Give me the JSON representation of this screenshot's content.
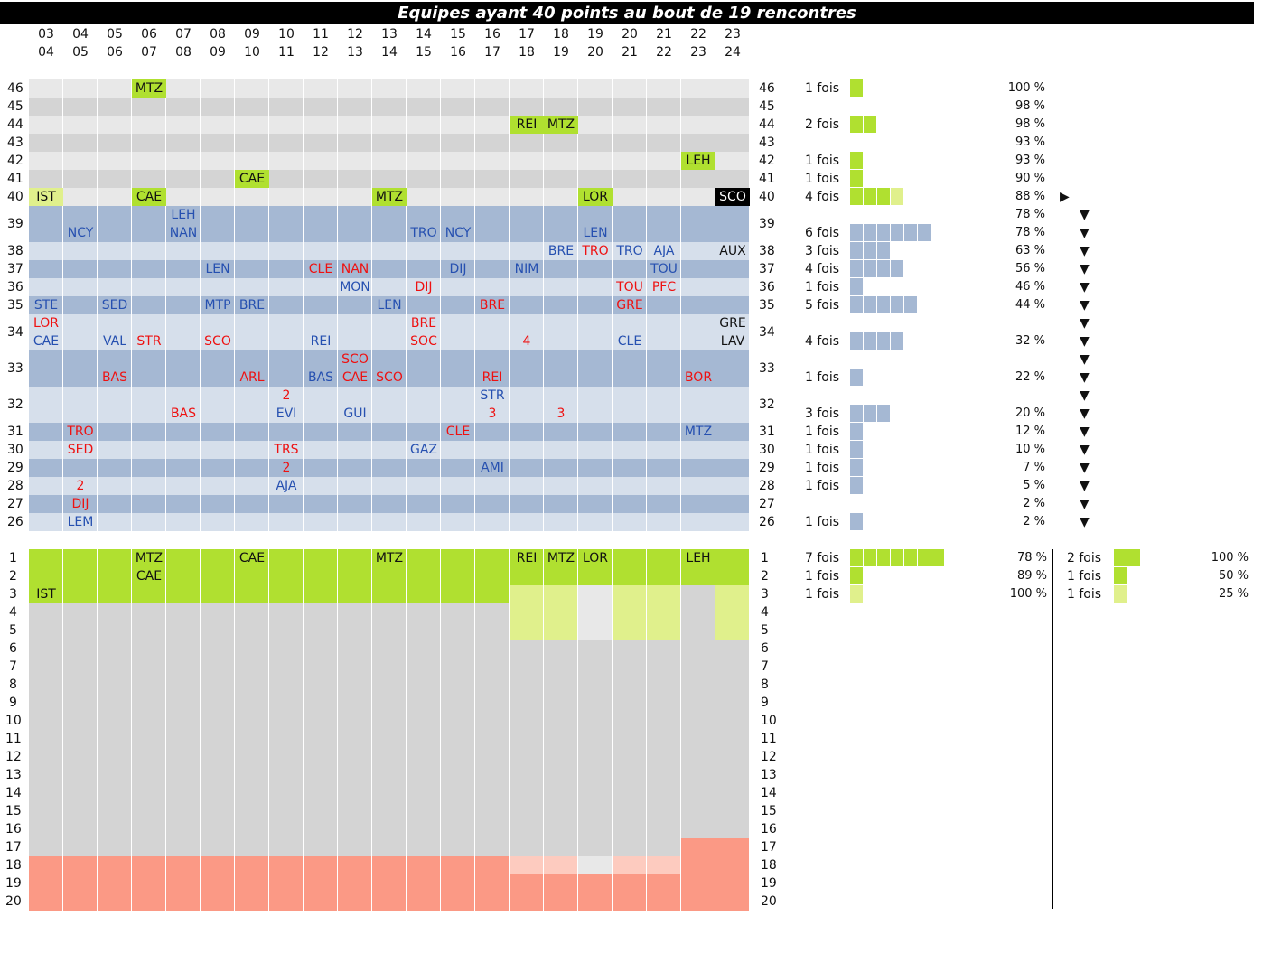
{
  "title": "Equipes ayant 40 points au bout de 19 rencontres",
  "seasons_top": [
    "03",
    "04",
    "05",
    "06",
    "07",
    "08",
    "09",
    "10",
    "11",
    "12",
    "13",
    "14",
    "15",
    "16",
    "17",
    "18",
    "19",
    "20",
    "21",
    "22",
    "23"
  ],
  "seasons_bottom": [
    "04",
    "05",
    "06",
    "07",
    "08",
    "09",
    "10",
    "11",
    "12",
    "13",
    "14",
    "15",
    "16",
    "17",
    "18",
    "19",
    "20",
    "21",
    "22",
    "23",
    "24"
  ],
  "colors": {
    "green": "#b0e030",
    "lime": "#e0f08c",
    "light_grey": "#e8e8e8",
    "mid_grey": "#d4d4d4",
    "blue_dark": "#a5b8d3",
    "blue_light": "#d6dfeb",
    "salmon": "#fb9985",
    "salmon_light": "#fdcbbf",
    "team_blue": "#2650b0",
    "team_red": "#ee1111"
  },
  "chart_data": {
    "type": "table",
    "title": "Equipes ayant 40 points au bout de 19 rencontres",
    "points_rows": [
      "46",
      "45",
      "44",
      "43",
      "42",
      "41",
      "40",
      "39",
      "38",
      "37",
      "36",
      "35",
      "34",
      "33",
      "32",
      "31",
      "30",
      "29",
      "28",
      "27",
      "26"
    ],
    "points_entries": [
      {
        "pts": "46",
        "col": 3,
        "line": 0,
        "text": "MTZ",
        "style": "bg-green"
      },
      {
        "pts": "44",
        "col": 14,
        "line": 0,
        "text": "REI",
        "style": "bg-green"
      },
      {
        "pts": "44",
        "col": 15,
        "line": 0,
        "text": "MTZ",
        "style": "bg-green"
      },
      {
        "pts": "42",
        "col": 19,
        "line": 0,
        "text": "LEH",
        "style": "bg-green"
      },
      {
        "pts": "41",
        "col": 6,
        "line": 0,
        "text": "CAE",
        "style": "bg-green"
      },
      {
        "pts": "40",
        "col": 0,
        "line": 0,
        "text": "IST",
        "style": "bg-lime"
      },
      {
        "pts": "40",
        "col": 3,
        "line": 0,
        "text": "CAE",
        "style": "bg-green"
      },
      {
        "pts": "40",
        "col": 10,
        "line": 0,
        "text": "MTZ",
        "style": "bg-green"
      },
      {
        "pts": "40",
        "col": 16,
        "line": 0,
        "text": "LOR",
        "style": "bg-green"
      },
      {
        "pts": "40",
        "col": 20,
        "line": 0,
        "text": "SCO",
        "style": "bg-black"
      },
      {
        "pts": "39",
        "col": 1,
        "line": 1,
        "text": "NCY",
        "style": "blue"
      },
      {
        "pts": "39",
        "col": 4,
        "line": 0,
        "text": "LEH",
        "style": "blue"
      },
      {
        "pts": "39",
        "col": 4,
        "line": 1,
        "text": "NAN",
        "style": "blue"
      },
      {
        "pts": "39",
        "col": 11,
        "line": 1,
        "text": "TRO",
        "style": "blue"
      },
      {
        "pts": "39",
        "col": 12,
        "line": 1,
        "text": "NCY",
        "style": "blue"
      },
      {
        "pts": "39",
        "col": 16,
        "line": 1,
        "text": "LEN",
        "style": "blue"
      },
      {
        "pts": "38",
        "col": 15,
        "line": 0,
        "text": "BRE",
        "style": "blue"
      },
      {
        "pts": "38",
        "col": 16,
        "line": 0,
        "text": "TRO",
        "style": "red"
      },
      {
        "pts": "38",
        "col": 17,
        "line": 0,
        "text": "TRO",
        "style": "blue"
      },
      {
        "pts": "38",
        "col": 18,
        "line": 0,
        "text": "AJA",
        "style": "blue"
      },
      {
        "pts": "38",
        "col": 20,
        "line": 0,
        "text": "AUX",
        "style": "black"
      },
      {
        "pts": "37",
        "col": 5,
        "line": 0,
        "text": "LEN",
        "style": "blue"
      },
      {
        "pts": "37",
        "col": 8,
        "line": 0,
        "text": "CLE",
        "style": "red"
      },
      {
        "pts": "37",
        "col": 9,
        "line": 0,
        "text": "NAN",
        "style": "red"
      },
      {
        "pts": "37",
        "col": 12,
        "line": 0,
        "text": "DIJ",
        "style": "blue"
      },
      {
        "pts": "37",
        "col": 14,
        "line": 0,
        "text": "NIM",
        "style": "blue"
      },
      {
        "pts": "37",
        "col": 18,
        "line": 0,
        "text": "TOU",
        "style": "blue"
      },
      {
        "pts": "36",
        "col": 9,
        "line": 0,
        "text": "MON",
        "style": "blue"
      },
      {
        "pts": "36",
        "col": 11,
        "line": 0,
        "text": "DIJ",
        "style": "red"
      },
      {
        "pts": "36",
        "col": 17,
        "line": 0,
        "text": "TOU",
        "style": "red"
      },
      {
        "pts": "36",
        "col": 18,
        "line": 0,
        "text": "PFC",
        "style": "red"
      },
      {
        "pts": "35",
        "col": 0,
        "line": 0,
        "text": "STE",
        "style": "blue"
      },
      {
        "pts": "35",
        "col": 2,
        "line": 0,
        "text": "SED",
        "style": "blue"
      },
      {
        "pts": "35",
        "col": 5,
        "line": 0,
        "text": "MTP",
        "style": "blue"
      },
      {
        "pts": "35",
        "col": 6,
        "line": 0,
        "text": "BRE",
        "style": "blue"
      },
      {
        "pts": "35",
        "col": 10,
        "line": 0,
        "text": "LEN",
        "style": "blue"
      },
      {
        "pts": "35",
        "col": 13,
        "line": 0,
        "text": "BRE",
        "style": "red"
      },
      {
        "pts": "35",
        "col": 17,
        "line": 0,
        "text": "GRE",
        "style": "red"
      },
      {
        "pts": "34",
        "col": 0,
        "line": 0,
        "text": "LOR",
        "style": "red"
      },
      {
        "pts": "34",
        "col": 0,
        "line": 1,
        "text": "CAE",
        "style": "blue"
      },
      {
        "pts": "34",
        "col": 2,
        "line": 1,
        "text": "VAL",
        "style": "blue"
      },
      {
        "pts": "34",
        "col": 3,
        "line": 1,
        "text": "STR",
        "style": "red"
      },
      {
        "pts": "34",
        "col": 5,
        "line": 1,
        "text": "SCO",
        "style": "red"
      },
      {
        "pts": "34",
        "col": 8,
        "line": 1,
        "text": "REI",
        "style": "blue"
      },
      {
        "pts": "34",
        "col": 11,
        "line": 0,
        "text": "BRE",
        "style": "red"
      },
      {
        "pts": "34",
        "col": 11,
        "line": 1,
        "text": "SOC",
        "style": "red"
      },
      {
        "pts": "34",
        "col": 14,
        "line": 1,
        "text": "4",
        "style": "red"
      },
      {
        "pts": "34",
        "col": 17,
        "line": 1,
        "text": "CLE",
        "style": "blue"
      },
      {
        "pts": "34",
        "col": 20,
        "line": 0,
        "text": "GRE",
        "style": "black"
      },
      {
        "pts": "34",
        "col": 20,
        "line": 1,
        "text": "LAV",
        "style": "black"
      },
      {
        "pts": "33",
        "col": 2,
        "line": 1,
        "text": "BAS",
        "style": "red"
      },
      {
        "pts": "33",
        "col": 6,
        "line": 1,
        "text": "ARL",
        "style": "red"
      },
      {
        "pts": "33",
        "col": 8,
        "line": 1,
        "text": "BAS",
        "style": "blue"
      },
      {
        "pts": "33",
        "col": 9,
        "line": 0,
        "text": "SCO",
        "style": "red"
      },
      {
        "pts": "33",
        "col": 9,
        "line": 1,
        "text": "CAE",
        "style": "red"
      },
      {
        "pts": "33",
        "col": 10,
        "line": 1,
        "text": "SCO",
        "style": "red"
      },
      {
        "pts": "33",
        "col": 13,
        "line": 1,
        "text": "REI",
        "style": "red"
      },
      {
        "pts": "33",
        "col": 19,
        "line": 1,
        "text": "BOR",
        "style": "red"
      },
      {
        "pts": "32",
        "col": 4,
        "line": 1,
        "text": "BAS",
        "style": "red"
      },
      {
        "pts": "32",
        "col": 7,
        "line": 0,
        "text": "2",
        "style": "red"
      },
      {
        "pts": "32",
        "col": 7,
        "line": 1,
        "text": "EVI",
        "style": "blue"
      },
      {
        "pts": "32",
        "col": 9,
        "line": 1,
        "text": "GUI",
        "style": "blue"
      },
      {
        "pts": "32",
        "col": 13,
        "line": 0,
        "text": "STR",
        "style": "blue"
      },
      {
        "pts": "32",
        "col": 13,
        "line": 1,
        "text": "3",
        "style": "red"
      },
      {
        "pts": "32",
        "col": 15,
        "line": 1,
        "text": "3",
        "style": "red"
      },
      {
        "pts": "31",
        "col": 1,
        "line": 0,
        "text": "TRO",
        "style": "red"
      },
      {
        "pts": "31",
        "col": 12,
        "line": 0,
        "text": "CLE",
        "style": "red"
      },
      {
        "pts": "31",
        "col": 19,
        "line": 0,
        "text": "MTZ",
        "style": "blue"
      },
      {
        "pts": "30",
        "col": 1,
        "line": 0,
        "text": "SED",
        "style": "red"
      },
      {
        "pts": "30",
        "col": 7,
        "line": 0,
        "text": "TRS",
        "style": "red"
      },
      {
        "pts": "30",
        "col": 11,
        "line": 0,
        "text": "GAZ",
        "style": "blue"
      },
      {
        "pts": "29",
        "col": 7,
        "line": 0,
        "text": "2",
        "style": "red"
      },
      {
        "pts": "29",
        "col": 13,
        "line": 0,
        "text": "AMI",
        "style": "blue"
      },
      {
        "pts": "28",
        "col": 1,
        "line": 0,
        "text": "2",
        "style": "red"
      },
      {
        "pts": "28",
        "col": 7,
        "line": 0,
        "text": "AJA",
        "style": "blue"
      },
      {
        "pts": "27",
        "col": 1,
        "line": 0,
        "text": "DIJ",
        "style": "red"
      },
      {
        "pts": "26",
        "col": 1,
        "line": 0,
        "text": "LEM",
        "style": "blue"
      }
    ],
    "rank_rows": [
      "1",
      "2",
      "3",
      "4",
      "5",
      "6",
      "7",
      "8",
      "9",
      "10",
      "11",
      "12",
      "13",
      "14",
      "15",
      "16",
      "17",
      "18",
      "19",
      "20"
    ],
    "rank_columns": [
      {
        "green_to": 3,
        "lime_to": 3,
        "grey_to": 17,
        "light_to": 17
      },
      {
        "green_to": 3,
        "lime_to": 3,
        "grey_to": 17,
        "light_to": 17
      },
      {
        "green_to": 3,
        "lime_to": 3,
        "grey_to": 17,
        "light_to": 17
      },
      {
        "green_to": 3,
        "lime_to": 3,
        "grey_to": 17,
        "light_to": 17
      },
      {
        "green_to": 3,
        "lime_to": 3,
        "grey_to": 17,
        "light_to": 17
      },
      {
        "green_to": 3,
        "lime_to": 3,
        "grey_to": 17,
        "light_to": 17
      },
      {
        "green_to": 3,
        "lime_to": 3,
        "grey_to": 17,
        "light_to": 17
      },
      {
        "green_to": 3,
        "lime_to": 3,
        "grey_to": 17,
        "light_to": 17
      },
      {
        "green_to": 3,
        "lime_to": 3,
        "grey_to": 17,
        "light_to": 17
      },
      {
        "green_to": 3,
        "lime_to": 3,
        "grey_to": 17,
        "light_to": 17
      },
      {
        "green_to": 3,
        "lime_to": 3,
        "grey_to": 17,
        "light_to": 17
      },
      {
        "green_to": 3,
        "lime_to": 3,
        "grey_to": 17,
        "light_to": 17
      },
      {
        "green_to": 3,
        "lime_to": 3,
        "grey_to": 17,
        "light_to": 17
      },
      {
        "green_to": 3,
        "lime_to": 3,
        "grey_to": 17,
        "light_to": 17
      },
      {
        "green_to": 2,
        "lime_to": 5,
        "grey_to": 17,
        "light_to": 18
      },
      {
        "green_to": 2,
        "lime_to": 5,
        "grey_to": 17,
        "light_to": 18
      },
      {
        "green_to": 2,
        "lime_to": 2,
        "blank_to": 5,
        "grey_to": 17,
        "blank2_to": 18
      },
      {
        "green_to": 2,
        "lime_to": 5,
        "grey_to": 17,
        "light_to": 18
      },
      {
        "green_to": 2,
        "lime_to": 5,
        "grey_to": 17,
        "light_to": 18
      },
      {
        "green_to": 2,
        "lime_to": 2,
        "grey_to": 16,
        "light_to": 16
      },
      {
        "green_to": 2,
        "lime_to": 5,
        "grey_to": 16,
        "light_to": 16
      }
    ],
    "rank_entries": [
      {
        "col": 0,
        "rank": 3,
        "text": "IST"
      },
      {
        "col": 3,
        "rank": 1,
        "text": "MTZ"
      },
      {
        "col": 3,
        "rank": 2,
        "text": "CAE"
      },
      {
        "col": 6,
        "rank": 1,
        "text": "CAE"
      },
      {
        "col": 10,
        "rank": 1,
        "text": "MTZ"
      },
      {
        "col": 14,
        "rank": 1,
        "text": "REI"
      },
      {
        "col": 15,
        "rank": 1,
        "text": "MTZ"
      },
      {
        "col": 16,
        "rank": 1,
        "text": "LOR"
      },
      {
        "col": 19,
        "rank": 1,
        "text": "LEH"
      }
    ],
    "points_stats": [
      {
        "pts": "46",
        "label": "1 fois",
        "count": 1,
        "lime": 0,
        "pct": "100 %",
        "sub": 0,
        "tri": ""
      },
      {
        "pts": "45",
        "label": "",
        "count": 0,
        "lime": 0,
        "pct": "98 %",
        "sub": 0,
        "tri": ""
      },
      {
        "pts": "44",
        "label": "2 fois",
        "count": 2,
        "lime": 0,
        "pct": "98 %",
        "sub": 0,
        "tri": ""
      },
      {
        "pts": "43",
        "label": "",
        "count": 0,
        "lime": 0,
        "pct": "93 %",
        "sub": 0,
        "tri": ""
      },
      {
        "pts": "42",
        "label": "1 fois",
        "count": 1,
        "lime": 0,
        "pct": "93 %",
        "sub": 0,
        "tri": ""
      },
      {
        "pts": "41",
        "label": "1 fois",
        "count": 1,
        "lime": 0,
        "pct": "90 %",
        "sub": 0,
        "tri": ""
      },
      {
        "pts": "40",
        "label": "4 fois",
        "count": 4,
        "lime": 1,
        "pct": "88 %",
        "sub": 0,
        "tri": "▶"
      },
      {
        "pts": "39",
        "label": "",
        "count": 0,
        "lime": 0,
        "pct": "78 %",
        "sub": 0,
        "tri": "▼"
      },
      {
        "pts": "39",
        "label": "6 fois",
        "count": 6,
        "lime": 0,
        "pct": "78 %",
        "sub": 1,
        "tri": "▼"
      },
      {
        "pts": "38",
        "label": "3 fois",
        "count": 3,
        "lime": 0,
        "pct": "63 %",
        "sub": 0,
        "tri": "▼"
      },
      {
        "pts": "37",
        "label": "4 fois",
        "count": 4,
        "lime": 0,
        "pct": "56 %",
        "sub": 0,
        "tri": "▼"
      },
      {
        "pts": "36",
        "label": "1 fois",
        "count": 1,
        "lime": 0,
        "pct": "46 %",
        "sub": 0,
        "tri": "▼"
      },
      {
        "pts": "35",
        "label": "5 fois",
        "count": 5,
        "lime": 0,
        "pct": "44 %",
        "sub": 0,
        "tri": "▼"
      },
      {
        "pts": "34",
        "label": "",
        "count": 0,
        "lime": 0,
        "pct": "",
        "sub": 0,
        "tri": "▼"
      },
      {
        "pts": "34",
        "label": "4 fois",
        "count": 4,
        "lime": 0,
        "pct": "32 %",
        "sub": 1,
        "tri": "▼"
      },
      {
        "pts": "33",
        "label": "",
        "count": 0,
        "lime": 0,
        "pct": "",
        "sub": 0,
        "tri": "▼"
      },
      {
        "pts": "33",
        "label": "1 fois",
        "count": 1,
        "lime": 0,
        "pct": "22 %",
        "sub": 1,
        "tri": "▼"
      },
      {
        "pts": "32",
        "label": "",
        "count": 0,
        "lime": 0,
        "pct": "",
        "sub": 0,
        "tri": "▼"
      },
      {
        "pts": "32",
        "label": "3 fois",
        "count": 3,
        "lime": 0,
        "pct": "20 %",
        "sub": 1,
        "tri": "▼"
      },
      {
        "pts": "31",
        "label": "1 fois",
        "count": 1,
        "lime": 0,
        "pct": "12 %",
        "sub": 0,
        "tri": "▼"
      },
      {
        "pts": "30",
        "label": "1 fois",
        "count": 1,
        "lime": 0,
        "pct": "10 %",
        "sub": 0,
        "tri": "▼"
      },
      {
        "pts": "29",
        "label": "1 fois",
        "count": 1,
        "lime": 0,
        "pct": "7 %",
        "sub": 0,
        "tri": "▼"
      },
      {
        "pts": "28",
        "label": "1 fois",
        "count": 1,
        "lime": 0,
        "pct": "5 %",
        "sub": 0,
        "tri": "▼"
      },
      {
        "pts": "27",
        "label": "",
        "count": 0,
        "lime": 0,
        "pct": "2 %",
        "sub": 0,
        "tri": "▼"
      },
      {
        "pts": "26",
        "label": "1 fois",
        "count": 1,
        "lime": 0,
        "pct": "2 %",
        "sub": 0,
        "tri": "▼"
      }
    ],
    "rank_stats_left": [
      {
        "rank": "1",
        "label": "7 fois",
        "count": 7,
        "lime": 0,
        "pct": "78 %"
      },
      {
        "rank": "2",
        "label": "1 fois",
        "count": 1,
        "lime": 0,
        "pct": "89 %"
      },
      {
        "rank": "3",
        "label": "1 fois",
        "count": 0,
        "lime": 1,
        "pct": "100 %"
      }
    ],
    "rank_stats_right": [
      {
        "rank": "1",
        "label": "2 fois",
        "count": 2,
        "lime": 0,
        "pct": "100 %"
      },
      {
        "rank": "2",
        "label": "1 fois",
        "count": 1,
        "lime": 0,
        "pct": "50 %"
      },
      {
        "rank": "3",
        "label": "1 fois",
        "count": 0,
        "lime": 1,
        "pct": "25 %"
      }
    ]
  }
}
